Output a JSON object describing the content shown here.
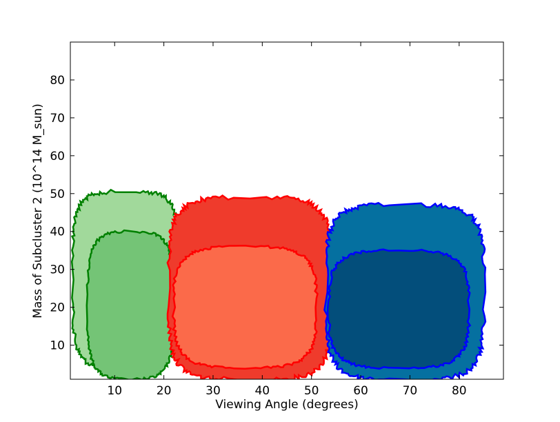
{
  "chart_data": {
    "type": "contour",
    "xlabel": "Viewing Angle (degrees)",
    "ylabel": "Mass of Subcluster 2 (10^14 M_sun)",
    "xlim": [
      1,
      89
    ],
    "ylim": [
      1,
      90
    ],
    "xticks": [
      10,
      20,
      30,
      40,
      50,
      60,
      70,
      80
    ],
    "yticks": [
      10,
      20,
      30,
      40,
      50,
      60,
      70,
      80
    ],
    "grid": false,
    "series": [
      {
        "color_outer": "#a1d99b",
        "color_inner": "#74c476",
        "line_color": "#008000",
        "outer_x_range": [
          1.5,
          23
        ],
        "outer_y_range": [
          4,
          50.5
        ],
        "inner_x_range": [
          4.5,
          22
        ],
        "inner_y_range": [
          1,
          40
        ]
      },
      {
        "color_outer": "#ef3b2c",
        "color_inner": "#fb6a4a",
        "line_color": "#ff0000",
        "outer_x_range": [
          21,
          54
        ],
        "outer_y_range": [
          1,
          49
        ],
        "inner_x_range": [
          22,
          51
        ],
        "inner_y_range": [
          4,
          36
        ]
      },
      {
        "color_outer": "#0570a0",
        "color_inner": "#034e7b",
        "line_color": "#0000ff",
        "outer_x_range": [
          53,
          85
        ],
        "outer_y_range": [
          1,
          47
        ],
        "inner_x_range": [
          53.5,
          82
        ],
        "inner_y_range": [
          4,
          35
        ]
      }
    ]
  }
}
